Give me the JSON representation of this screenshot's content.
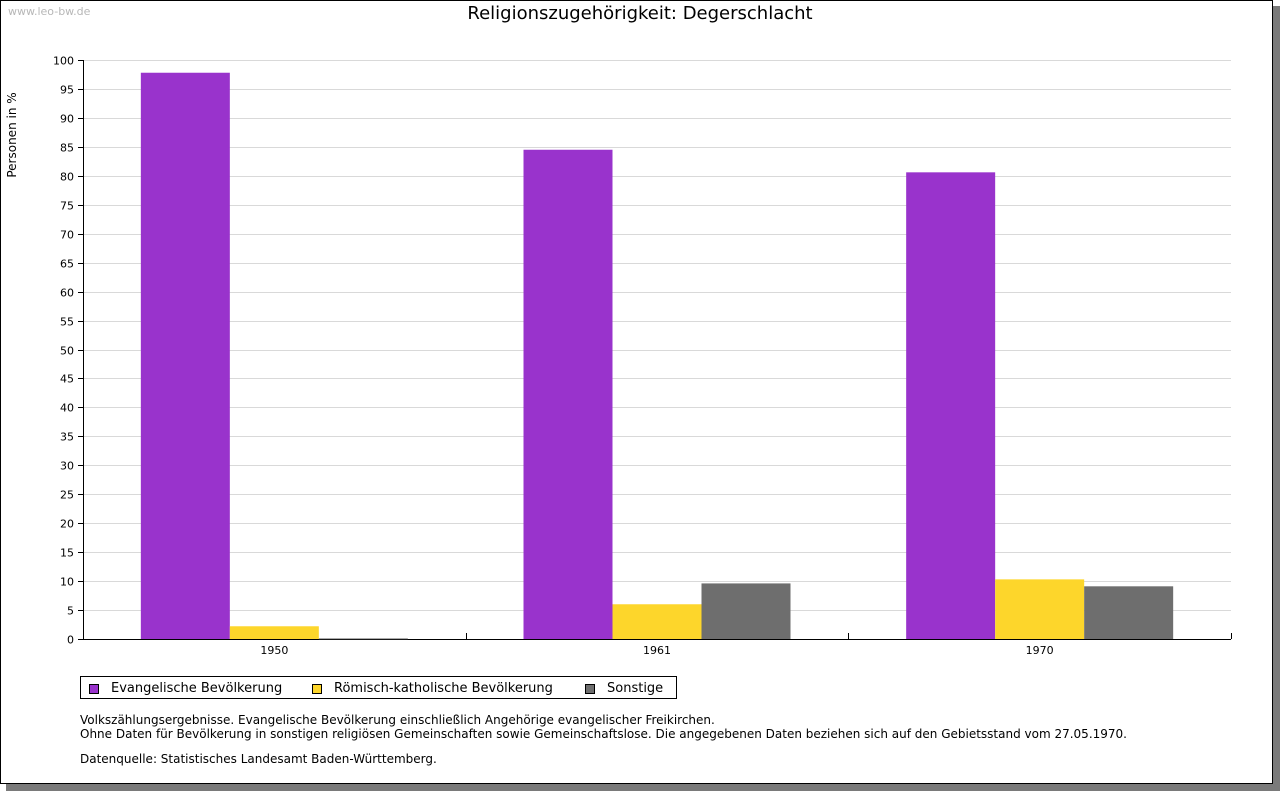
{
  "watermark": "www.leo-bw.de",
  "colors": {
    "evangelisch": "#9933cc",
    "katholisch": "#fdd62b",
    "sonstige": "#6e6e6e"
  },
  "chart_data": {
    "type": "bar",
    "title": "Religionszugehörigkeit: Degerschlacht",
    "xlabel": "",
    "ylabel": "Personen in %",
    "ylim": [
      0,
      100
    ],
    "ytick_step": 5,
    "grid": true,
    "legend_position": "bottom-left",
    "categories": [
      "1950",
      "1961",
      "1970"
    ],
    "series": [
      {
        "name": "Evangelische Bevölkerung",
        "color": "#9933cc",
        "values": [
          97.8,
          84.5,
          80.6
        ]
      },
      {
        "name": "Römisch-katholische Bevölkerung",
        "color": "#fdd62b",
        "values": [
          2.2,
          6.0,
          10.3
        ]
      },
      {
        "name": "Sonstige",
        "color": "#6e6e6e",
        "values": [
          0.1,
          9.6,
          9.1
        ]
      }
    ]
  },
  "notes": {
    "line1": "Volkszählungsergebnisse. Evangelische Bevölkerung einschließlich Angehörige evangelischer Freikirchen.",
    "line2": "Ohne Daten für Bevölkerung in sonstigen religiösen Gemeinschaften sowie Gemeinschaftslose. Die angegebenen Daten beziehen sich auf den Gebietsstand vom 27.05.1970.",
    "source": "Datenquelle: Statistisches Landesamt Baden-Württemberg."
  }
}
